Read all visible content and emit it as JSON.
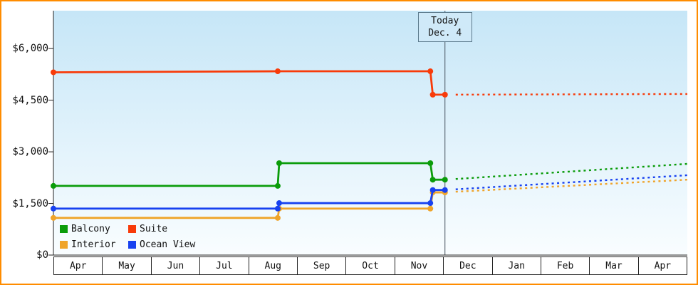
{
  "colors": {
    "frame_border": "#ff8c00",
    "plot_bg_top": "#c6e6f7",
    "plot_bg_bottom": "#f9fdff",
    "axis": "#222222",
    "today_line": "#44505c",
    "balcony": "#0a9c0a",
    "suite": "#f83b0a",
    "interior": "#efa42a",
    "ocean_view": "#1741f0"
  },
  "legend": {
    "items": [
      {
        "label": "Balcony",
        "color": "#0a9c0a"
      },
      {
        "label": "Suite",
        "color": "#f83b0a"
      },
      {
        "label": "Interior",
        "color": "#efa42a"
      },
      {
        "label": "Ocean View",
        "color": "#1741f0"
      }
    ]
  },
  "chart_data": {
    "type": "line",
    "title": "",
    "xlabel": "",
    "ylabel": "",
    "x_months": [
      "Apr",
      "May",
      "Jun",
      "Jul",
      "Aug",
      "Sep",
      "Oct",
      "Nov",
      "Dec",
      "Jan",
      "Feb",
      "Mar",
      "Apr"
    ],
    "y_ticks": [
      "$6,000",
      "$4,500",
      "$3,000",
      "$1,500",
      "$0"
    ],
    "y_tick_values": [
      6000,
      4500,
      3000,
      1500,
      0
    ],
    "ylim": [
      0,
      7100
    ],
    "grid": false,
    "legend_position": "bottom-left-inside",
    "today": {
      "line1": "Today",
      "line2": "Dec. 4",
      "x_month_index": 8.03
    },
    "series": [
      {
        "name": "Balcony",
        "color": "#0a9c0a",
        "solid": [
          [
            0,
            2010
          ],
          [
            4.6,
            2010
          ],
          [
            4.63,
            2670
          ],
          [
            7.73,
            2670
          ],
          [
            7.78,
            2190
          ],
          [
            8.03,
            2190
          ]
        ],
        "dashed": [
          [
            8.25,
            2210
          ],
          [
            13,
            2650
          ]
        ]
      },
      {
        "name": "Suite",
        "color": "#f83b0a",
        "solid": [
          [
            0,
            5310
          ],
          [
            4.6,
            5340
          ],
          [
            7.73,
            5340
          ],
          [
            7.78,
            4660
          ],
          [
            8.03,
            4660
          ]
        ],
        "dashed": [
          [
            8.25,
            4660
          ],
          [
            13,
            4680
          ]
        ]
      },
      {
        "name": "Interior",
        "color": "#efa42a",
        "solid": [
          [
            0,
            1080
          ],
          [
            4.6,
            1080
          ],
          [
            4.63,
            1350
          ],
          [
            7.73,
            1350
          ],
          [
            7.78,
            1820
          ],
          [
            8.03,
            1820
          ]
        ],
        "dashed": [
          [
            8.25,
            1840
          ],
          [
            13,
            2190
          ]
        ]
      },
      {
        "name": "Ocean View",
        "color": "#1741f0",
        "solid": [
          [
            0,
            1350
          ],
          [
            4.6,
            1350
          ],
          [
            4.63,
            1510
          ],
          [
            7.73,
            1510
          ],
          [
            7.78,
            1890
          ],
          [
            8.03,
            1890
          ]
        ],
        "dashed": [
          [
            8.25,
            1910
          ],
          [
            13,
            2320
          ]
        ]
      }
    ]
  }
}
